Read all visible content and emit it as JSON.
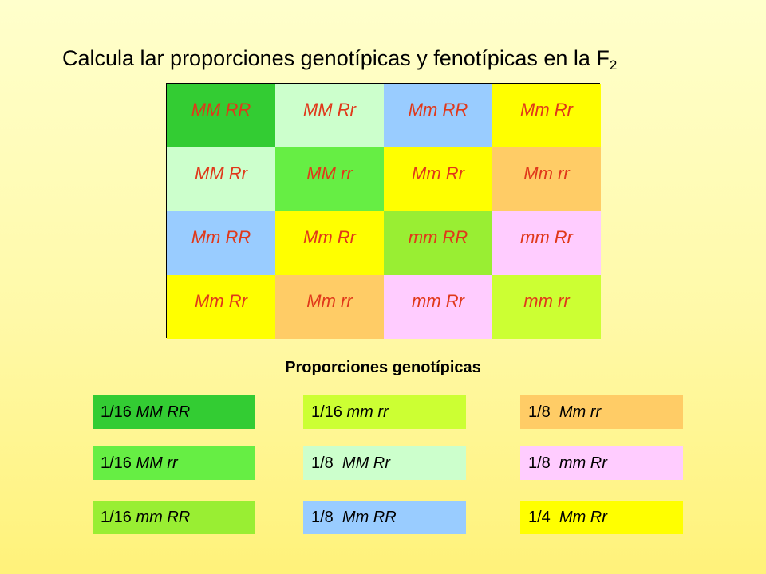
{
  "title": {
    "text": "Calcula lar proporciones genotípicas y fenotípicas en la F",
    "sub": "2"
  },
  "punnett": [
    [
      {
        "g": "MM RR",
        "c": "#33cc33"
      },
      {
        "g": "MM Rr",
        "c": "#ccffcc"
      },
      {
        "g": "Mm RR",
        "c": "#99ccff"
      },
      {
        "g": "Mm Rr",
        "c": "#ffff00"
      }
    ],
    [
      {
        "g": "MM Rr",
        "c": "#ccffcc"
      },
      {
        "g": "MM rr",
        "c": "#66ee44"
      },
      {
        "g": "Mm Rr",
        "c": "#ffff00"
      },
      {
        "g": "Mm rr",
        "c": "#ffcc66"
      }
    ],
    [
      {
        "g": "Mm RR",
        "c": "#99ccff"
      },
      {
        "g": "Mm Rr",
        "c": "#ffff00"
      },
      {
        "g": "mm RR",
        "c": "#99ee33"
      },
      {
        "g": "mm Rr",
        "c": "#ffccff"
      }
    ],
    [
      {
        "g": "Mm Rr",
        "c": "#ffff00"
      },
      {
        "g": "Mm rr",
        "c": "#ffcc66"
      },
      {
        "g": "mm Rr",
        "c": "#ffccff"
      },
      {
        "g": "mm rr",
        "c": "#ccff33"
      }
    ]
  ],
  "proportions_title": "Proporciones genotípicas",
  "proportions": [
    {
      "frac": "1/16 ",
      "g": "MM RR",
      "c": "#33cc33"
    },
    {
      "frac": "1/16 ",
      "g": "mm rr",
      "c": "#ccff33"
    },
    {
      "frac": "1/8  ",
      "g": "Mm rr",
      "c": "#ffcc66"
    },
    {
      "frac": "1/16 ",
      "g": "MM rr",
      "c": "#66ee44"
    },
    {
      "frac": "1/8  ",
      "g": "MM Rr",
      "c": "#ccffcc"
    },
    {
      "frac": "1/8  ",
      "g": "mm Rr",
      "c": "#ffccff"
    },
    {
      "frac": "1/16 ",
      "g": "mm RR",
      "c": "#99ee33"
    },
    {
      "frac": "1/8  ",
      "g": "Mm RR",
      "c": "#99ccff"
    },
    {
      "frac": "1/4  ",
      "g": "Mm Rr",
      "c": "#ffff00"
    }
  ]
}
